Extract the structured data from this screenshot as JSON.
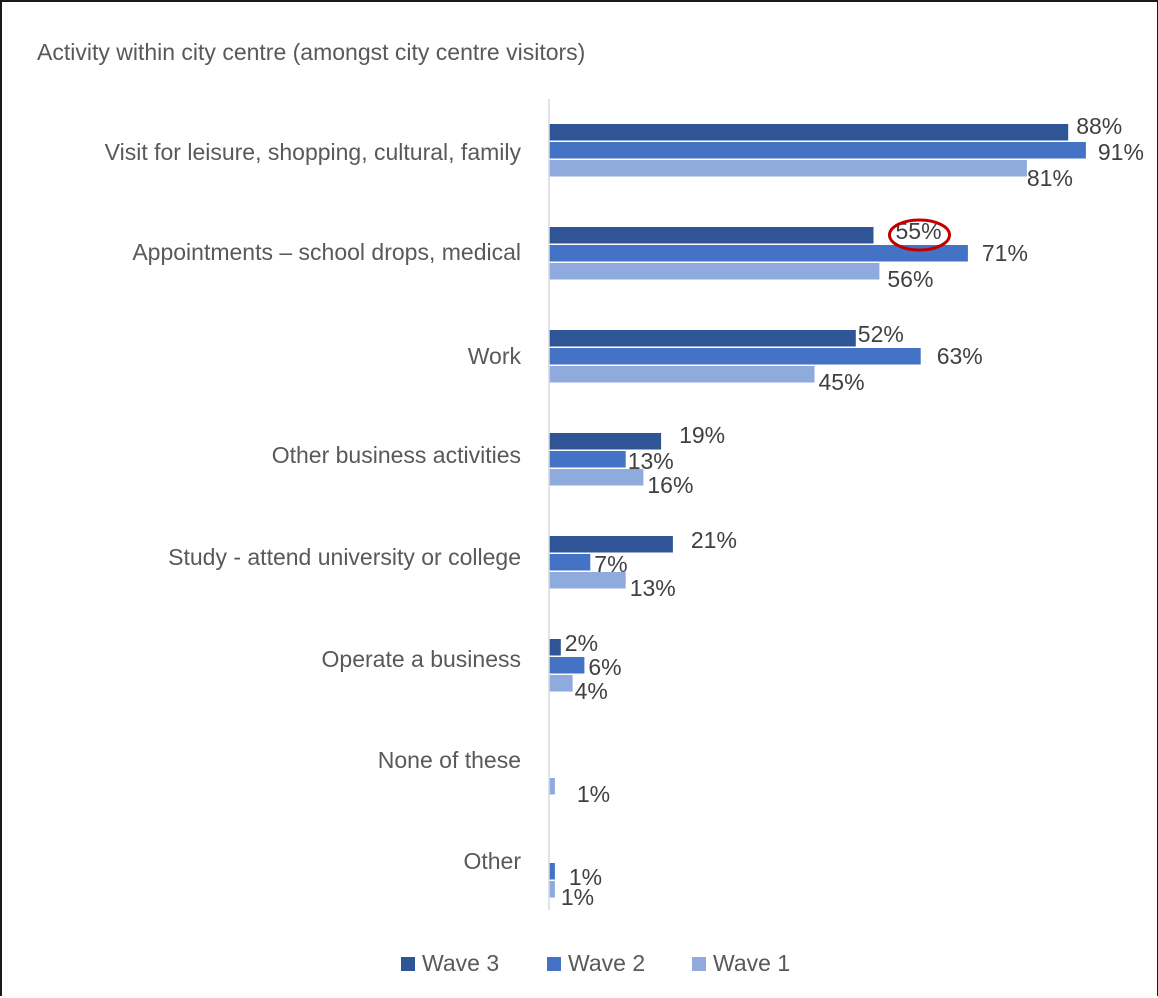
{
  "chart_data": {
    "type": "bar",
    "orientation": "horizontal",
    "title": "Activity within city centre (amongst city centre visitors)",
    "categories": [
      "Visit for leisure, shopping, cultural, family",
      "Appointments – school drops, medical",
      "Work",
      "Other business activities",
      "Study - attend university or college",
      "Operate a business",
      "None of these",
      "Other"
    ],
    "series": [
      {
        "name": "Wave 3",
        "color": "#2f5597",
        "values": [
          88,
          55,
          52,
          19,
          21,
          2,
          null,
          null
        ],
        "labels": [
          "88%",
          "55%",
          "52%",
          "19%",
          "21%",
          "2%",
          "",
          ""
        ]
      },
      {
        "name": "Wave 2",
        "color": "#4472c4",
        "values": [
          91,
          71,
          63,
          13,
          7,
          6,
          null,
          1
        ],
        "labels": [
          "91%",
          "71%",
          "63%",
          "13%",
          "7%",
          "6%",
          "",
          "1%"
        ]
      },
      {
        "name": "Wave 1",
        "color": "#8faadc",
        "values": [
          81,
          56,
          45,
          16,
          13,
          4,
          1,
          1
        ],
        "labels": [
          "81%",
          "56%",
          "45%",
          "16%",
          "13%",
          "4%",
          "1%",
          "1%"
        ]
      }
    ],
    "legend_position": "bottom",
    "highlight": {
      "category_index": 1,
      "series_index": 0,
      "shape": "ellipse",
      "color": "#c00000"
    },
    "xlim": [
      0,
      100
    ],
    "grid": false
  }
}
